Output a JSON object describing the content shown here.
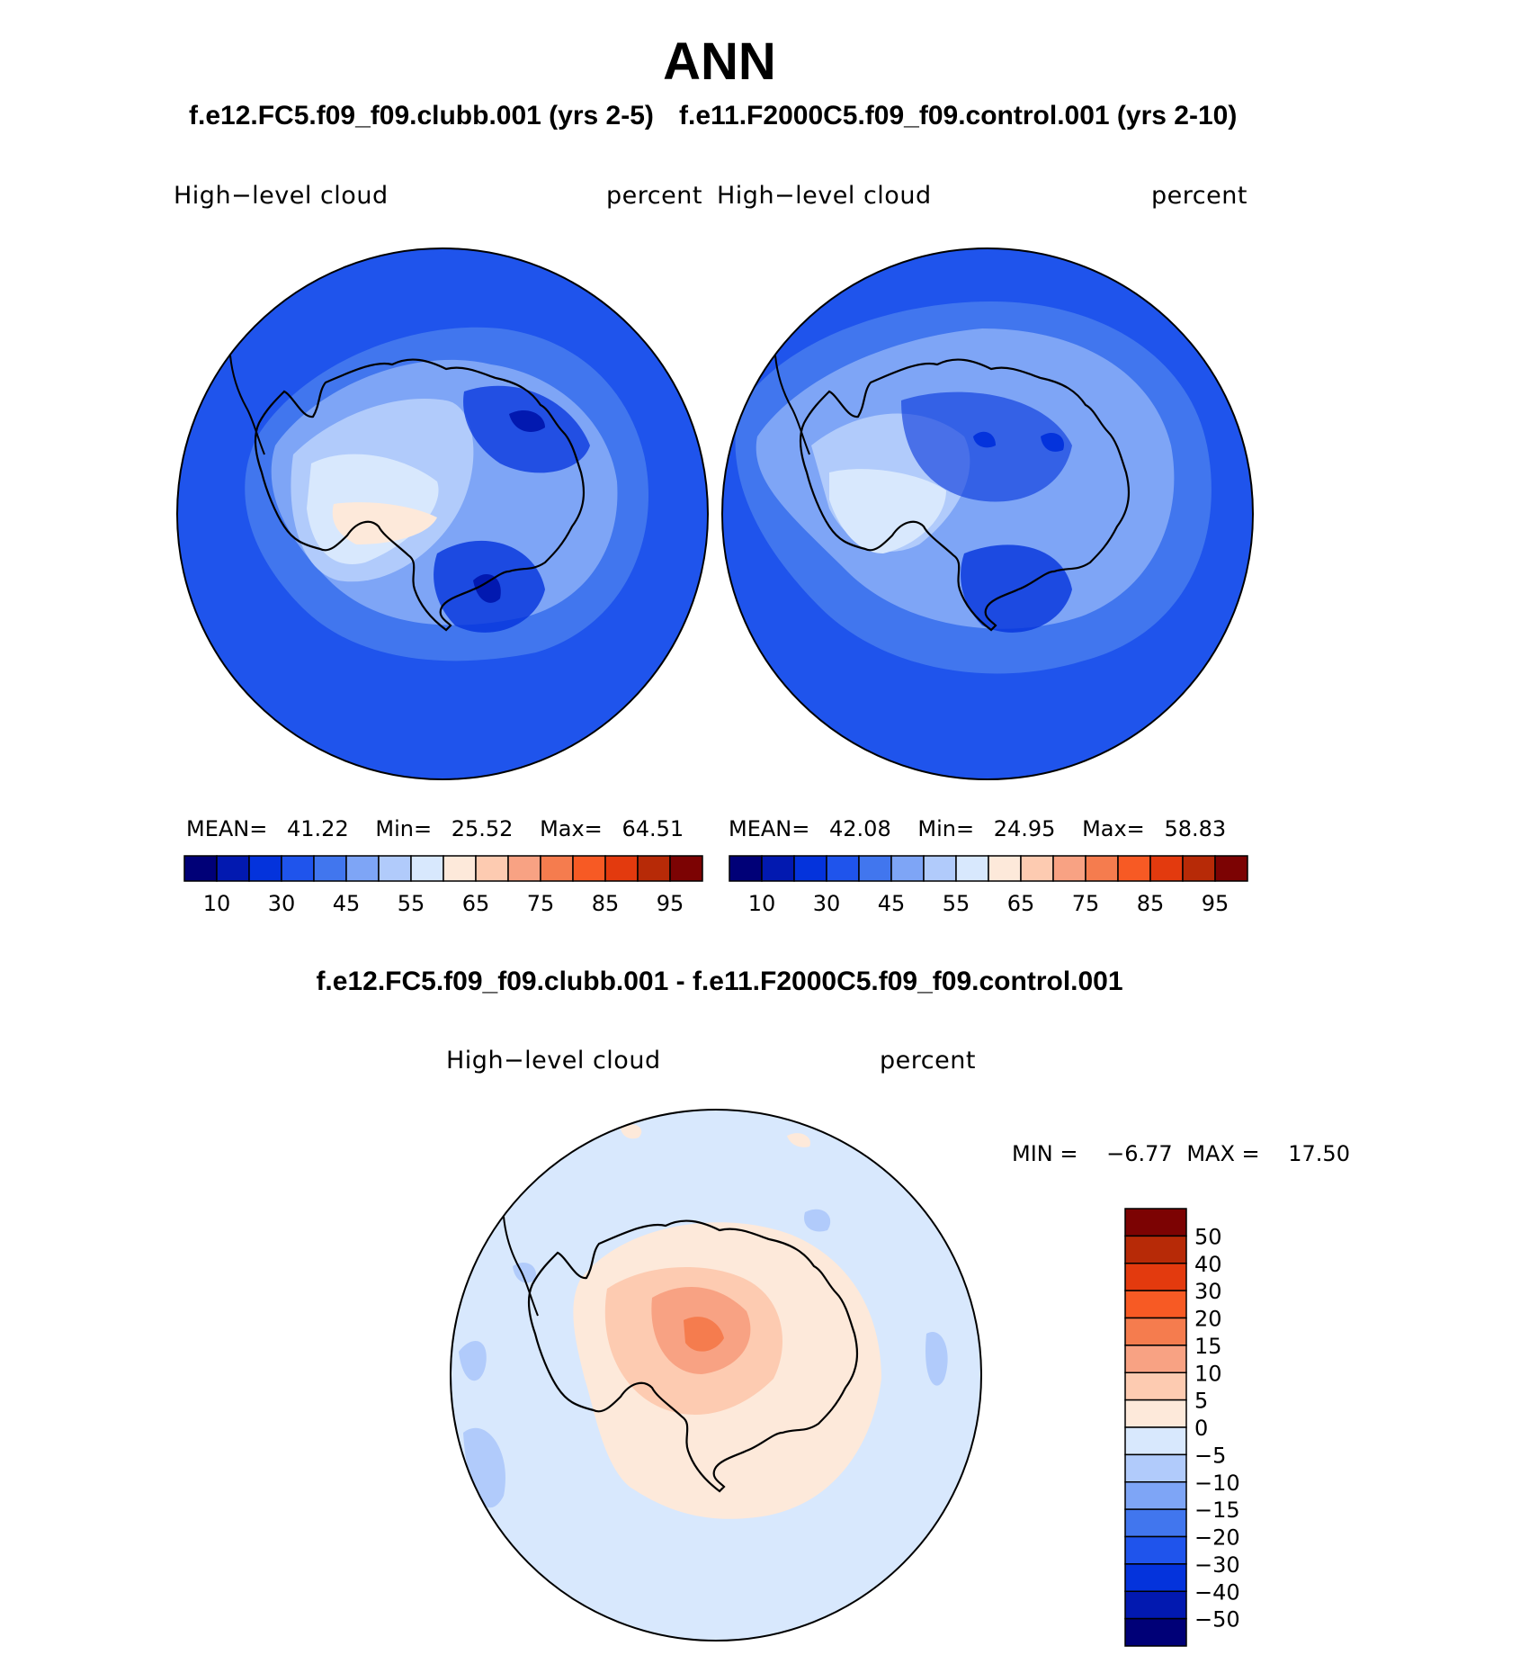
{
  "title": "ANN",
  "case1_title": "f.e12.FC5.f09_f09.clubb.001 (yrs 2-5)",
  "case2_title": "f.e11.F2000C5.f09_f09.control.001 (yrs 2-10)",
  "diff_title": "f.e12.FC5.f09_f09.clubb.001 - f.e11.F2000C5.f09_f09.control.001",
  "panels": [
    {
      "variable": "High−level  cloud",
      "units": "percent",
      "mean_label": "MEAN=",
      "mean": "41.22",
      "min_label": "Min=",
      "min": "25.52",
      "max_label": "Max=",
      "max": "64.51"
    },
    {
      "variable": "High−level  cloud",
      "units": "percent",
      "mean_label": "MEAN=",
      "mean": "42.08",
      "min_label": "Min=",
      "min": "24.95",
      "max_label": "Max=",
      "max": "58.83"
    }
  ],
  "diff_panel": {
    "variable": "High−level  cloud",
    "units": "percent",
    "min_label": "MIN =",
    "min": "−6.77",
    "max_label": "MAX =",
    "max": "17.50"
  },
  "colorbar_levels": [
    "10",
    "30",
    "45",
    "55",
    "65",
    "75",
    "85",
    "95"
  ],
  "colorbar_colors": [
    "#000077",
    "#0219b0",
    "#0433dc",
    "#1f54ec",
    "#4176ee",
    "#7ea5f6",
    "#b1cbfb",
    "#d8e8fd",
    "#fde9da",
    "#fdcbb1",
    "#f8a283",
    "#f57c4e",
    "#f75a24",
    "#e33a0e",
    "#b72a07",
    "#7c0303"
  ],
  "diff_levels": [
    "50",
    "40",
    "30",
    "20",
    "15",
    "10",
    "5",
    "0",
    "−5",
    "−10",
    "−15",
    "−20",
    "−30",
    "−40",
    "−50"
  ],
  "diff_colors": [
    "#7c0303",
    "#b72a07",
    "#e33a0e",
    "#f75a24",
    "#f57c4e",
    "#f8a283",
    "#fdcbb1",
    "#fde9da",
    "#d8e8fd",
    "#b1cbfb",
    "#7ea5f6",
    "#4176ee",
    "#1f54ec",
    "#0433dc",
    "#0219b0",
    "#000077"
  ]
}
